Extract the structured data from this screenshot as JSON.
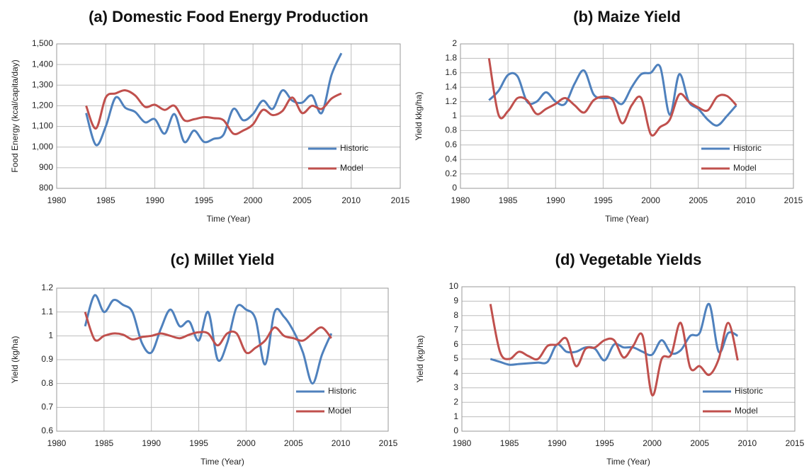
{
  "chart_data": [
    {
      "type": "line",
      "title": "(a) Domestic Food Energy Production",
      "x_label": "Time (Year)",
      "y_label": "Food Energy (kcal/capita/day)",
      "x": [
        1983,
        1984,
        1985,
        1986,
        1987,
        1988,
        1989,
        1990,
        1991,
        1992,
        1993,
        1994,
        1995,
        1996,
        1997,
        1998,
        1999,
        2000,
        2001,
        2002,
        2003,
        2004,
        2005,
        2006,
        2007,
        2008,
        2009
      ],
      "series": [
        {
          "name": "Historic",
          "color": "#4f81bd",
          "values": [
            1165,
            1010,
            1100,
            1240,
            1190,
            1170,
            1120,
            1135,
            1065,
            1160,
            1025,
            1080,
            1025,
            1040,
            1060,
            1185,
            1130,
            1160,
            1225,
            1185,
            1275,
            1225,
            1215,
            1250,
            1165,
            1350,
            1455
          ]
        },
        {
          "name": "Model",
          "color": "#c0504d",
          "values": [
            1200,
            1090,
            1240,
            1260,
            1275,
            1250,
            1195,
            1205,
            1180,
            1200,
            1130,
            1135,
            1145,
            1140,
            1130,
            1065,
            1080,
            1110,
            1180,
            1155,
            1175,
            1240,
            1165,
            1200,
            1185,
            1235,
            1260
          ]
        }
      ],
      "xlim": [
        1980,
        2015
      ],
      "xticks": [
        1980,
        1985,
        1990,
        1995,
        2000,
        2005,
        2010,
        2015
      ],
      "ylim": [
        800,
        1500
      ],
      "yticks": [
        800,
        900,
        {
          "value": 1000,
          "label": "1,000"
        },
        {
          "value": 1100,
          "label": "1,100"
        },
        {
          "value": 1200,
          "label": "1,200"
        },
        {
          "value": 1300,
          "label": "1,300"
        },
        {
          "value": 1400,
          "label": "1,400"
        },
        {
          "value": 1500,
          "label": "1,500"
        }
      ],
      "grid": true,
      "legend": "lower right"
    },
    {
      "type": "line",
      "title": "(b) Maize Yield",
      "x_label": "Time (Year)",
      "y_label": "Yield kkg/ha)",
      "x": [
        1983,
        1984,
        1985,
        1986,
        1987,
        1988,
        1989,
        1990,
        1991,
        1992,
        1993,
        1994,
        1995,
        1996,
        1997,
        1998,
        1999,
        2000,
        2001,
        2002,
        2003,
        2004,
        2005,
        2006,
        2007,
        2008,
        2009
      ],
      "series": [
        {
          "name": "Historic",
          "color": "#4f81bd",
          "values": [
            1.22,
            1.35,
            1.57,
            1.55,
            1.2,
            1.2,
            1.33,
            1.2,
            1.17,
            1.45,
            1.63,
            1.3,
            1.25,
            1.25,
            1.17,
            1.4,
            1.58,
            1.6,
            1.68,
            1.02,
            1.58,
            1.2,
            1.1,
            0.95,
            0.87,
            1.0,
            1.15
          ]
        },
        {
          "name": "Model",
          "color": "#c0504d",
          "values": [
            1.8,
            1.02,
            1.07,
            1.25,
            1.22,
            1.03,
            1.1,
            1.17,
            1.25,
            1.15,
            1.05,
            1.22,
            1.27,
            1.22,
            0.9,
            1.15,
            1.25,
            0.75,
            0.85,
            0.95,
            1.3,
            1.2,
            1.12,
            1.08,
            1.27,
            1.28,
            1.15
          ]
        }
      ],
      "xlim": [
        1980,
        2015
      ],
      "xticks": [
        1980,
        1985,
        1990,
        1995,
        2000,
        2005,
        2010,
        2015
      ],
      "ylim": [
        0,
        2
      ],
      "yticks": [
        0,
        0.2,
        0.4,
        0.6,
        0.8,
        1,
        1.2,
        1.4,
        1.6,
        1.8,
        2
      ],
      "grid": true,
      "legend": "lower right"
    },
    {
      "type": "line",
      "title": "(c) Millet Yield",
      "x_label": "Time (Year)",
      "y_label": "Yield (kg/ha)",
      "x": [
        1983,
        1984,
        1985,
        1986,
        1987,
        1988,
        1989,
        1990,
        1991,
        1992,
        1993,
        1994,
        1995,
        1996,
        1997,
        1998,
        1999,
        2000,
        2001,
        2002,
        2003,
        2004,
        2005,
        2006,
        2007,
        2008,
        2009
      ],
      "series": [
        {
          "name": "Historic",
          "color": "#4f81bd",
          "values": [
            1.04,
            1.17,
            1.1,
            1.15,
            1.13,
            1.1,
            0.97,
            0.93,
            1.03,
            1.11,
            1.04,
            1.06,
            0.98,
            1.1,
            0.9,
            0.97,
            1.12,
            1.11,
            1.07,
            0.88,
            1.1,
            1.08,
            1.02,
            0.93,
            0.8,
            0.92,
            1.01
          ]
        },
        {
          "name": "Model",
          "color": "#c0504d",
          "values": [
            1.1,
            0.985,
            1.0,
            1.01,
            1.005,
            0.985,
            0.995,
            1.0,
            1.01,
            1.0,
            0.99,
            1.005,
            1.015,
            1.01,
            0.96,
            1.01,
            1.01,
            0.93,
            0.95,
            0.98,
            1.035,
            1.0,
            0.99,
            0.98,
            1.01,
            1.035,
            0.99
          ]
        }
      ],
      "xlim": [
        1980,
        2015
      ],
      "xticks": [
        1980,
        1985,
        1990,
        1995,
        2000,
        2005,
        2010,
        2015
      ],
      "ylim": [
        0.6,
        1.2
      ],
      "yticks": [
        0.6,
        0.7,
        0.8,
        0.9,
        1,
        1.1,
        1.2
      ],
      "grid": true,
      "legend": "lower right"
    },
    {
      "type": "line",
      "title": "(d) Vegetable Yields",
      "x_label": "Time (Year)",
      "y_label": "Yield (kg/ha)",
      "x": [
        1983,
        1984,
        1985,
        1986,
        1987,
        1988,
        1989,
        1990,
        1991,
        1992,
        1993,
        1994,
        1995,
        1996,
        1997,
        1998,
        1999,
        2000,
        2001,
        2002,
        2003,
        2004,
        2005,
        2006,
        2007,
        2008,
        2009
      ],
      "series": [
        {
          "name": "Historic",
          "color": "#4f81bd",
          "values": [
            5.0,
            4.8,
            4.6,
            4.65,
            4.7,
            4.75,
            4.8,
            6.0,
            5.5,
            5.5,
            5.8,
            5.7,
            4.9,
            6.0,
            5.8,
            5.8,
            5.5,
            5.3,
            6.3,
            5.4,
            5.6,
            6.6,
            6.8,
            8.8,
            5.5,
            6.8,
            6.6
          ]
        },
        {
          "name": "Model",
          "color": "#c0504d",
          "values": [
            8.8,
            5.5,
            5.0,
            5.5,
            5.2,
            5.0,
            5.9,
            6.0,
            6.4,
            4.5,
            5.7,
            5.8,
            6.3,
            6.3,
            5.1,
            5.9,
            6.6,
            2.5,
            5.0,
            5.3,
            7.5,
            4.4,
            4.5,
            3.9,
            5.0,
            7.5,
            4.9
          ]
        }
      ],
      "xlim": [
        1980,
        2015
      ],
      "xticks": [
        1980,
        1985,
        1990,
        1995,
        2000,
        2005,
        2010,
        2015
      ],
      "ylim": [
        0,
        10
      ],
      "yticks": [
        0,
        1,
        2,
        3,
        4,
        5,
        6,
        7,
        8,
        9,
        10
      ],
      "grid": true,
      "legend": "lower right"
    }
  ]
}
